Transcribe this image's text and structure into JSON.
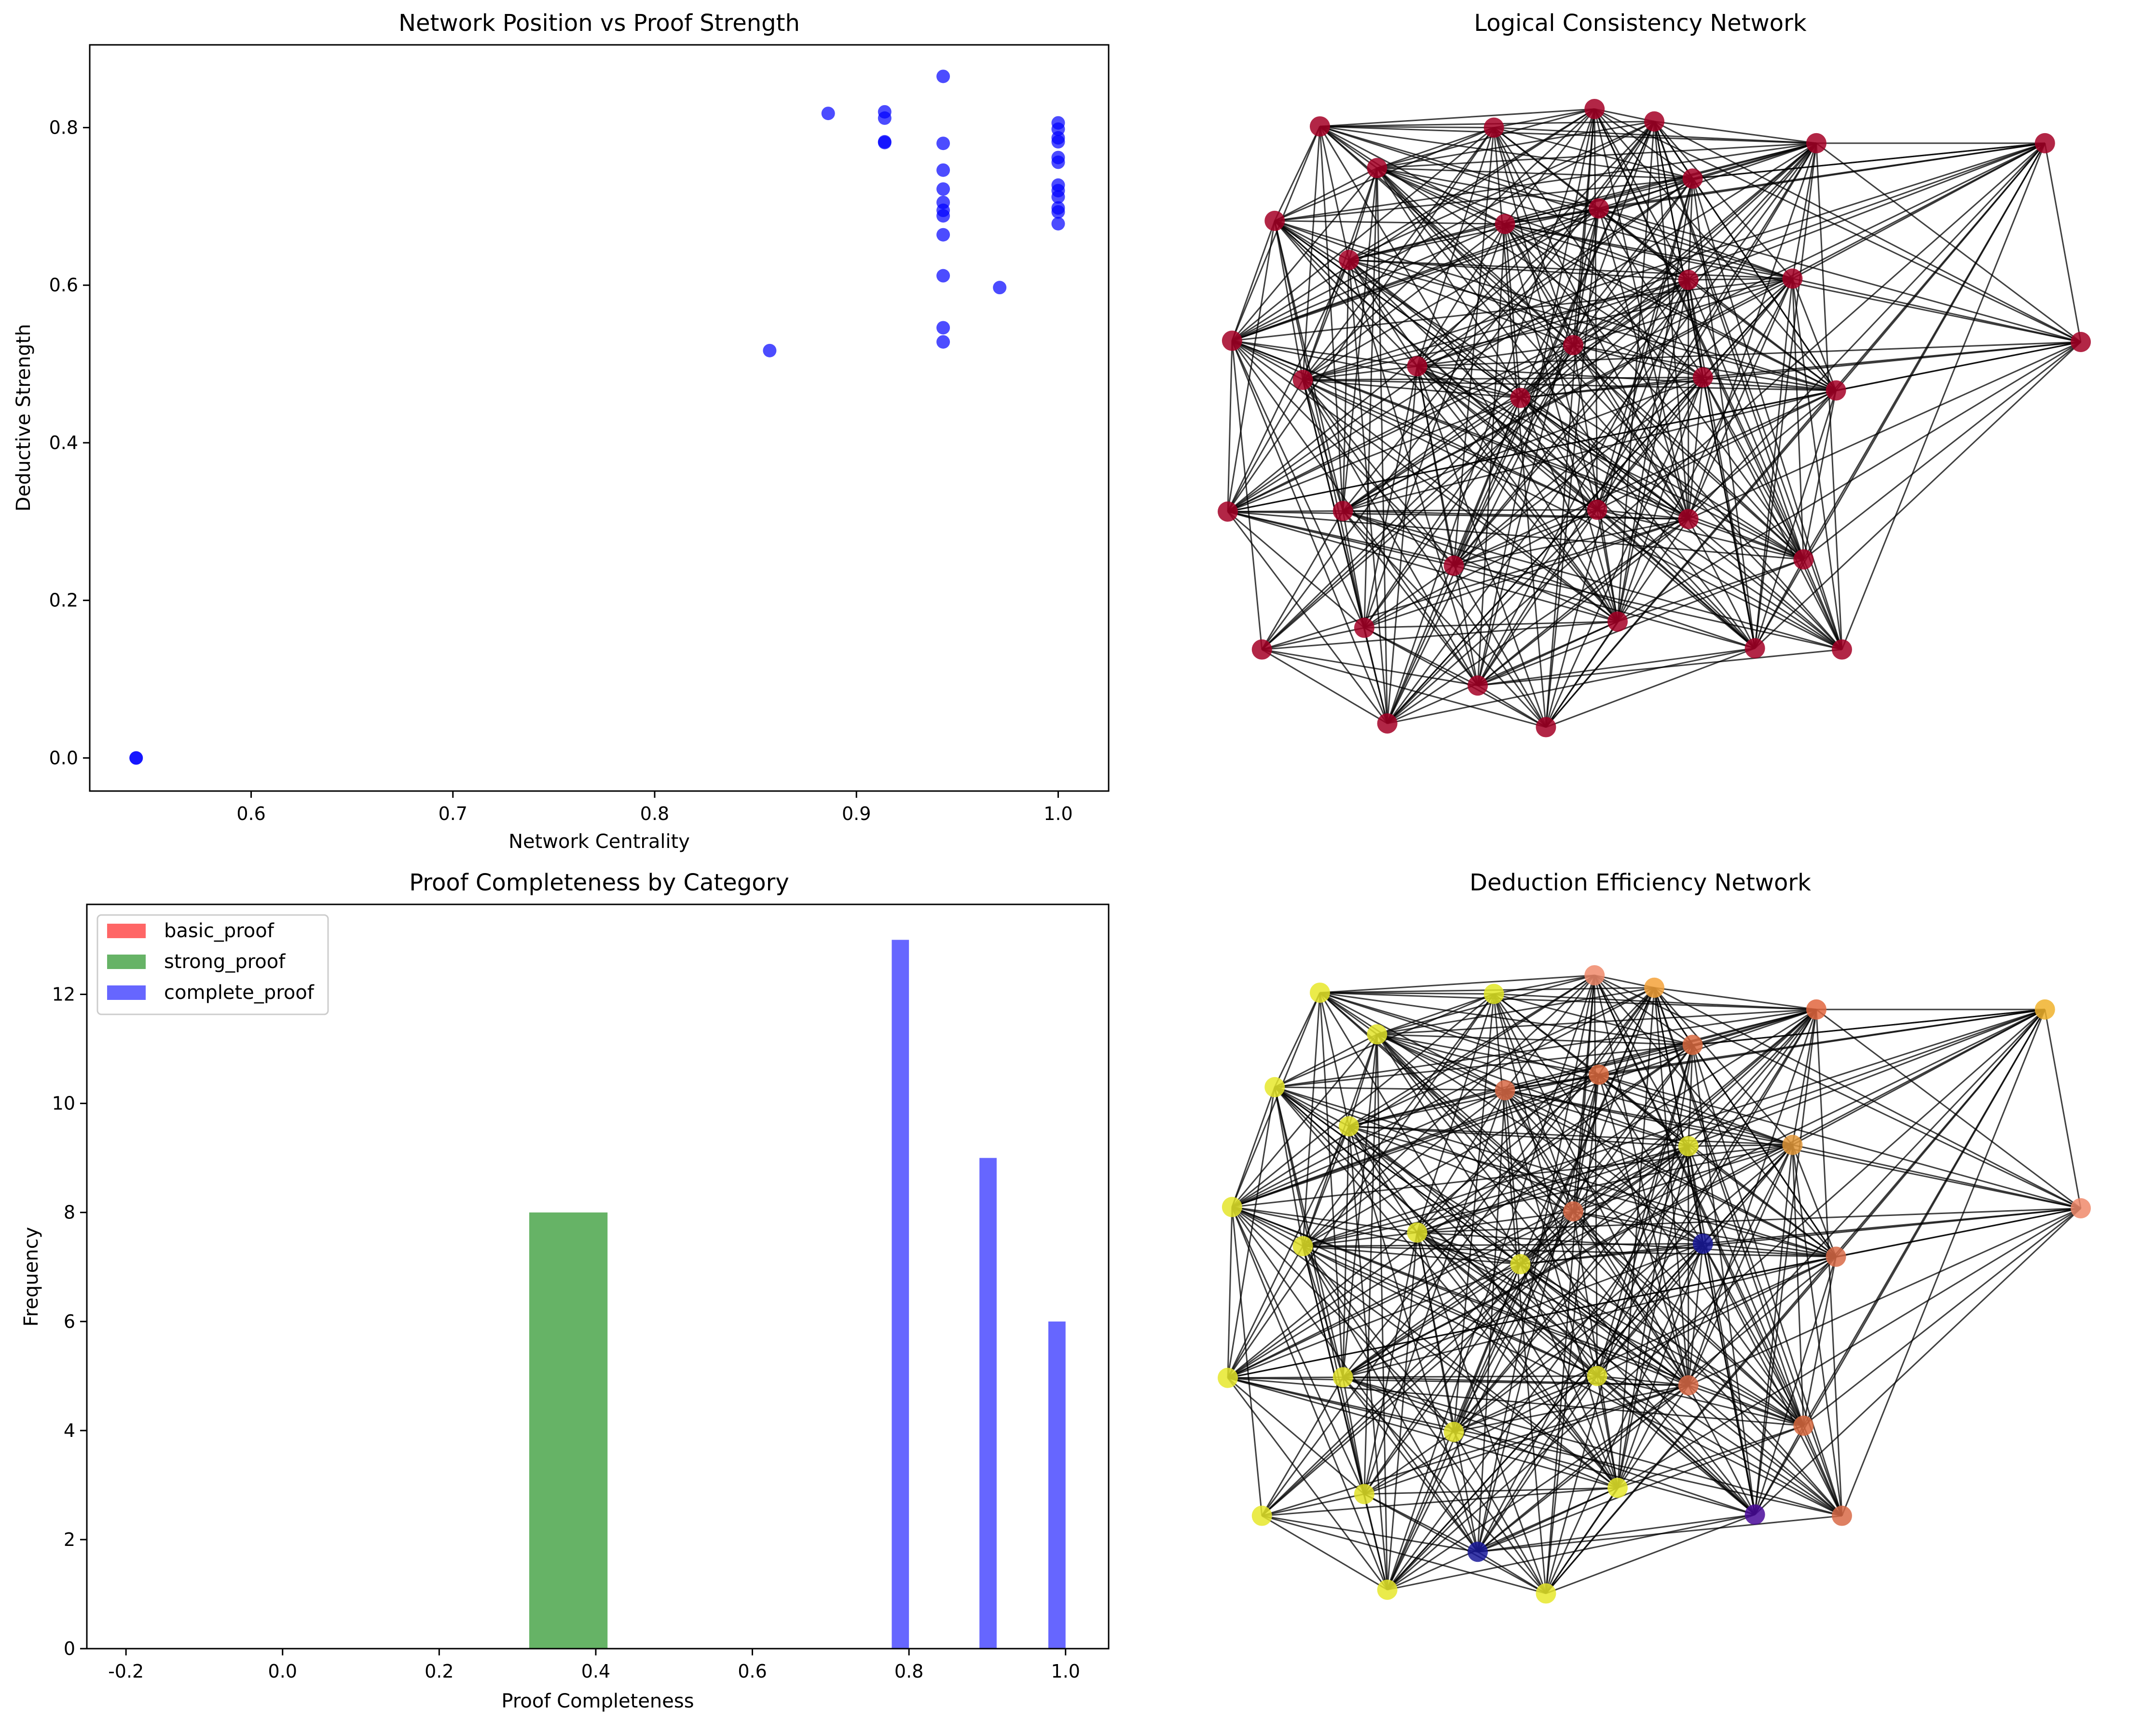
{
  "chart_data": [
    {
      "type": "scatter",
      "title": "Network Position vs Proof Strength",
      "xlabel": "Network Centrality",
      "ylabel": "Deductive Strength",
      "xlim": [
        0.52,
        1.025
      ],
      "ylim": [
        -0.042,
        0.905
      ],
      "xticks": [
        0.6,
        0.7,
        0.8,
        0.9,
        1.0
      ],
      "xtick_labels": [
        "0.6",
        "0.7",
        "0.8",
        "0.9",
        "1.0"
      ],
      "yticks": [
        0.0,
        0.2,
        0.4,
        0.6,
        0.8
      ],
      "ytick_labels": [
        "0.0",
        "0.2",
        "0.4",
        "0.6",
        "0.8"
      ],
      "color": "#0000ff",
      "grid": false,
      "points": [
        {
          "x": 0.543,
          "y": 0.0
        },
        {
          "x": 0.543,
          "y": 0.0
        },
        {
          "x": 0.857,
          "y": 0.517
        },
        {
          "x": 0.886,
          "y": 0.818
        },
        {
          "x": 0.914,
          "y": 0.82
        },
        {
          "x": 0.914,
          "y": 0.812
        },
        {
          "x": 0.914,
          "y": 0.782
        },
        {
          "x": 0.914,
          "y": 0.781
        },
        {
          "x": 0.943,
          "y": 0.865
        },
        {
          "x": 0.943,
          "y": 0.78
        },
        {
          "x": 0.943,
          "y": 0.746
        },
        {
          "x": 0.943,
          "y": 0.722
        },
        {
          "x": 0.943,
          "y": 0.705
        },
        {
          "x": 0.943,
          "y": 0.695
        },
        {
          "x": 0.943,
          "y": 0.688
        },
        {
          "x": 0.943,
          "y": 0.664
        },
        {
          "x": 0.943,
          "y": 0.612
        },
        {
          "x": 0.943,
          "y": 0.546
        },
        {
          "x": 0.943,
          "y": 0.528
        },
        {
          "x": 0.971,
          "y": 0.597
        },
        {
          "x": 1.0,
          "y": 0.806
        },
        {
          "x": 1.0,
          "y": 0.798
        },
        {
          "x": 1.0,
          "y": 0.787
        },
        {
          "x": 1.0,
          "y": 0.782
        },
        {
          "x": 1.0,
          "y": 0.762
        },
        {
          "x": 1.0,
          "y": 0.756
        },
        {
          "x": 1.0,
          "y": 0.727
        },
        {
          "x": 1.0,
          "y": 0.72
        },
        {
          "x": 1.0,
          "y": 0.712
        },
        {
          "x": 1.0,
          "y": 0.698
        },
        {
          "x": 1.0,
          "y": 0.693
        },
        {
          "x": 1.0,
          "y": 0.678
        }
      ]
    },
    {
      "type": "network",
      "title": "Logical Consistency Network",
      "node_color": "#a50026",
      "edge_color": "#000000",
      "nodes": [
        {
          "id": 0,
          "x": 0.43,
          "y": 1.0
        },
        {
          "id": 1,
          "x": 0.5,
          "y": 0.98
        },
        {
          "id": 2,
          "x": 0.108,
          "y": 0.972
        },
        {
          "id": 3,
          "x": 0.312,
          "y": 0.97
        },
        {
          "id": 4,
          "x": 0.69,
          "y": 0.945
        },
        {
          "id": 5,
          "x": 0.958,
          "y": 0.945
        },
        {
          "id": 6,
          "x": 0.175,
          "y": 0.905
        },
        {
          "id": 7,
          "x": 0.545,
          "y": 0.888
        },
        {
          "id": 8,
          "x": 0.055,
          "y": 0.82
        },
        {
          "id": 9,
          "x": 0.325,
          "y": 0.815
        },
        {
          "id": 10,
          "x": 0.435,
          "y": 0.84
        },
        {
          "id": 11,
          "x": 0.142,
          "y": 0.757
        },
        {
          "id": 12,
          "x": 0.54,
          "y": 0.725
        },
        {
          "id": 13,
          "x": 0.662,
          "y": 0.727
        },
        {
          "id": 14,
          "x": 0.005,
          "y": 0.627
        },
        {
          "id": 15,
          "x": 1.0,
          "y": 0.625
        },
        {
          "id": 16,
          "x": 0.405,
          "y": 0.62
        },
        {
          "id": 17,
          "x": 0.088,
          "y": 0.564
        },
        {
          "id": 18,
          "x": 0.222,
          "y": 0.586
        },
        {
          "id": 19,
          "x": 0.343,
          "y": 0.535
        },
        {
          "id": 20,
          "x": 0.557,
          "y": 0.568
        },
        {
          "id": 21,
          "x": 0.713,
          "y": 0.547
        },
        {
          "id": 22,
          "x": 0.0,
          "y": 0.352
        },
        {
          "id": 23,
          "x": 0.135,
          "y": 0.353
        },
        {
          "id": 24,
          "x": 0.433,
          "y": 0.355
        },
        {
          "id": 25,
          "x": 0.54,
          "y": 0.34
        },
        {
          "id": 26,
          "x": 0.675,
          "y": 0.275
        },
        {
          "id": 27,
          "x": 0.265,
          "y": 0.265
        },
        {
          "id": 28,
          "x": 0.04,
          "y": 0.13
        },
        {
          "id": 29,
          "x": 0.16,
          "y": 0.165
        },
        {
          "id": 30,
          "x": 0.457,
          "y": 0.175
        },
        {
          "id": 31,
          "x": 0.618,
          "y": 0.132
        },
        {
          "id": 32,
          "x": 0.72,
          "y": 0.13
        },
        {
          "id": 33,
          "x": 0.293,
          "y": 0.072
        },
        {
          "id": 34,
          "x": 0.187,
          "y": 0.011
        },
        {
          "id": 35,
          "x": 0.373,
          "y": 0.005
        }
      ],
      "edge_rule": "dense"
    },
    {
      "type": "histogram",
      "title": "Proof Completeness by Category",
      "xlabel": "Proof Completeness",
      "ylabel": "Frequency",
      "xlim": [
        -0.25,
        1.055
      ],
      "ylim": [
        0,
        13.65
      ],
      "xticks": [
        -0.2,
        0.0,
        0.2,
        0.4,
        0.6,
        0.8,
        1.0
      ],
      "xtick_labels": [
        "-0.2",
        "0.0",
        "0.2",
        "0.4",
        "0.6",
        "0.8",
        "1.0"
      ],
      "yticks": [
        0,
        2,
        4,
        6,
        8,
        10,
        12
      ],
      "ytick_labels": [
        "0",
        "2",
        "4",
        "6",
        "8",
        "10",
        "12"
      ],
      "legend_position": "upper-left",
      "series": [
        {
          "name": "basic_proof",
          "color": "#ff0000",
          "alpha": 0.6,
          "bins": []
        },
        {
          "name": "strong_proof",
          "color": "#008000",
          "alpha": 0.6,
          "bins": [
            {
              "x0": 0.315,
              "x1": 0.415,
              "count": 8
            }
          ]
        },
        {
          "name": "complete_proof",
          "color": "#0000ff",
          "alpha": 0.6,
          "bins": [
            {
              "x0": 0.778,
              "x1": 0.8,
              "count": 13
            },
            {
              "x0": 0.89,
              "x1": 0.912,
              "count": 9
            },
            {
              "x0": 0.978,
              "x1": 1.0,
              "count": 6
            }
          ]
        }
      ]
    },
    {
      "type": "network",
      "title": "Deduction Efficiency Network",
      "edge_color": "#000000",
      "node_colors": [
        "#f08a6b",
        "#f4a23a",
        "#e7e82a",
        "#e2e826",
        "#e2663e",
        "#f0b22c",
        "#e3e42a",
        "#d96a3f",
        "#e6e72c",
        "#d86a47",
        "#db6a3e",
        "#e0e128",
        "#e1e228",
        "#e2983a",
        "#e4e52a",
        "#f08a6b",
        "#d86a47",
        "#e0e128",
        "#e1e228",
        "#e0e128",
        "#1a1a9a",
        "#d86a47",
        "#e6e72c",
        "#e0e128",
        "#e0e128",
        "#d86a47",
        "#d96a3f",
        "#e0e128",
        "#e6e72c",
        "#e0e128",
        "#e6e72c",
        "#4a0a9a",
        "#d86a47",
        "#1a1a9a",
        "#e6e72c",
        "#e6e72c"
      ],
      "extra_node_colors": {
        "5": "#f4c030",
        "4b": "#c42a8a",
        "15b": "#8a1aaa",
        "21b": "#1a1a9a"
      },
      "same_layout_as": 1,
      "edge_rule": "dense"
    }
  ]
}
